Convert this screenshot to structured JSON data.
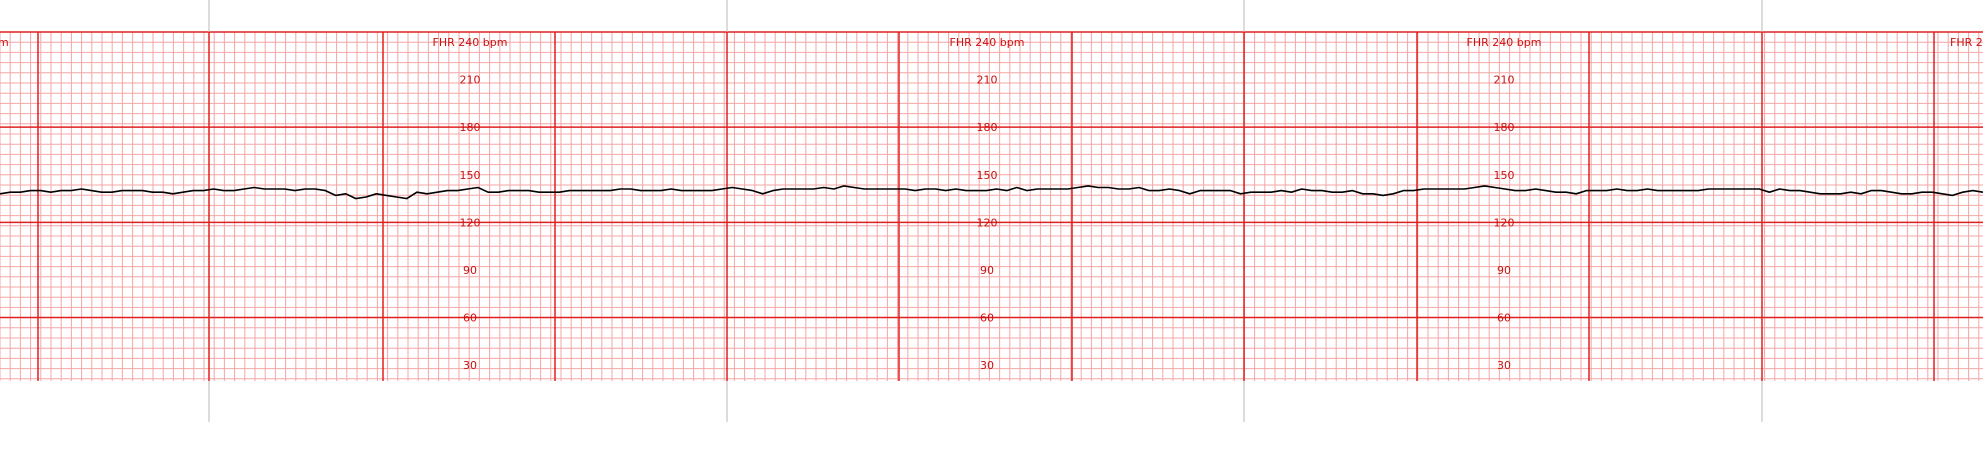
{
  "chart_data": {
    "type": "line",
    "header_label": "FHR 240 bpm",
    "y_ticks": [
      210,
      180,
      150,
      120,
      90,
      60,
      30
    ],
    "ylim": [
      20,
      240
    ],
    "grid": true,
    "colors": {
      "minor_grid": "#f4a6a6",
      "major_grid": "#e02020",
      "trace": "#000000",
      "separator": "#b8b8b8",
      "label": "#cc1010"
    },
    "series": [
      {
        "values": [
          138,
          139,
          139,
          140,
          140,
          139,
          140,
          140,
          141,
          140,
          139,
          139,
          140,
          140,
          140,
          139,
          139,
          138,
          139,
          140,
          140,
          141,
          140,
          140,
          141,
          142,
          141,
          141,
          141,
          140,
          141,
          141,
          140,
          137,
          138,
          135,
          136,
          138,
          137,
          136,
          135,
          139,
          138,
          139,
          140,
          140,
          141,
          142,
          139,
          139,
          140,
          140,
          140,
          139,
          139,
          139,
          140,
          140,
          140,
          140,
          140,
          141,
          141,
          140,
          140,
          140,
          141,
          140,
          140,
          140,
          140,
          141,
          142,
          141,
          140,
          138,
          140,
          141,
          141,
          141,
          141,
          142,
          141,
          143,
          142,
          141,
          141,
          141,
          141,
          141,
          140,
          141,
          141,
          140,
          141,
          140,
          140,
          140,
          141,
          140,
          142,
          140,
          141,
          141,
          141,
          141,
          142,
          143,
          142,
          142,
          141,
          141,
          142,
          140,
          140,
          141,
          140,
          138,
          140,
          140,
          140,
          140,
          138,
          139,
          139,
          139,
          140,
          139,
          141,
          140,
          140,
          139,
          139,
          140,
          138,
          138,
          137,
          138,
          140,
          140,
          141,
          141,
          141,
          141,
          141,
          142,
          143,
          142,
          141,
          140,
          140,
          141,
          140,
          139,
          139,
          138,
          140,
          140,
          140,
          141,
          140,
          140,
          141,
          140,
          140,
          140,
          140,
          140,
          141,
          141,
          141,
          141,
          141,
          141,
          139,
          141,
          140,
          140,
          139,
          138,
          138,
          138,
          139,
          138,
          140,
          140,
          139,
          138,
          138,
          139,
          139,
          138,
          137,
          139,
          140,
          139
        ]
      }
    ]
  }
}
